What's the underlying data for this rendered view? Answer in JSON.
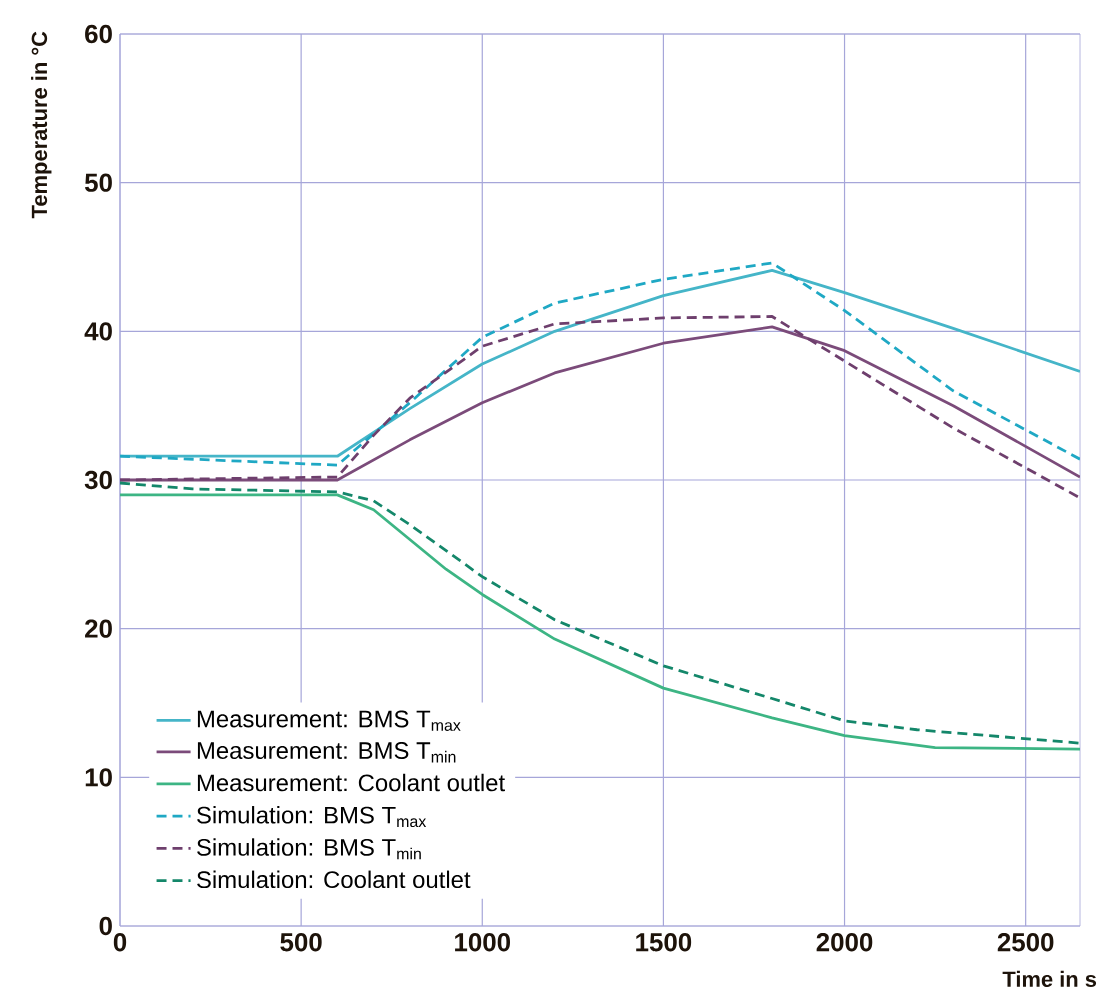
{
  "chart_data": {
    "type": "line",
    "xlabel": "Time in s",
    "ylabel": "Temperature in °C",
    "xlim": [
      0,
      2650
    ],
    "xticks": [
      0,
      500,
      1000,
      1500,
      2000,
      2500
    ],
    "ylim": [
      0,
      60
    ],
    "yticks": [
      0,
      10,
      20,
      30,
      40,
      50,
      60
    ],
    "grid": true,
    "legend": "bottom left",
    "series": [
      {
        "name": "Measurement: BMS T$_{max}$",
        "color": "#45b5c8",
        "line_style": "solid",
        "x": [
          0,
          600,
          800,
          1000,
          1200,
          1500,
          1800,
          2000,
          2300,
          2650
        ],
        "values": [
          31.6,
          31.6,
          34.8,
          37.8,
          40.0,
          42.4,
          44.1,
          42.6,
          40.2,
          37.3
        ]
      },
      {
        "name": "Measurement: BMS T$_{min}$",
        "color": "#7b4b7a",
        "line_style": "solid",
        "x": [
          0,
          600,
          800,
          1000,
          1200,
          1500,
          1800,
          2000,
          2300,
          2650
        ],
        "values": [
          30.0,
          30.0,
          32.7,
          35.2,
          37.2,
          39.2,
          40.3,
          38.7,
          35.0,
          30.2
        ]
      },
      {
        "name": "Measurement: Coolant outlet",
        "color": "#3db584",
        "line_style": "solid",
        "x": [
          0,
          600,
          700,
          800,
          900,
          1000,
          1200,
          1500,
          1800,
          2000,
          2250,
          2650
        ],
        "values": [
          29.0,
          29.0,
          28.0,
          26.0,
          24.0,
          22.3,
          19.3,
          16.0,
          14.0,
          12.8,
          12.0,
          11.9
        ]
      },
      {
        "name": "Simulation: BMS T$_{max}$",
        "color": "#1fa8c4",
        "line_style": "dashed",
        "x": [
          0,
          600,
          800,
          1000,
          1200,
          1500,
          1800,
          2000,
          2300,
          2650
        ],
        "values": [
          31.6,
          31.0,
          35.2,
          39.6,
          41.9,
          43.5,
          44.6,
          41.4,
          36.0,
          31.4
        ]
      },
      {
        "name": "Simulation: BMS T$_{min}$",
        "color": "#6e3f6d",
        "line_style": "dashed",
        "x": [
          0,
          600,
          700,
          800,
          1000,
          1200,
          1500,
          1800,
          2000,
          2300,
          2650
        ],
        "values": [
          30.0,
          30.2,
          33.0,
          35.5,
          39.0,
          40.5,
          40.9,
          41.0,
          38.0,
          33.5,
          28.8
        ]
      },
      {
        "name": "Simulation: Coolant outlet",
        "color": "#14876a",
        "line_style": "dashed",
        "x": [
          0,
          200,
          600,
          700,
          800,
          1000,
          1200,
          1500,
          1800,
          2000,
          2200,
          2650
        ],
        "values": [
          29.8,
          29.4,
          29.2,
          28.6,
          27.0,
          23.5,
          20.6,
          17.5,
          15.3,
          13.8,
          13.2,
          12.3
        ]
      }
    ]
  }
}
